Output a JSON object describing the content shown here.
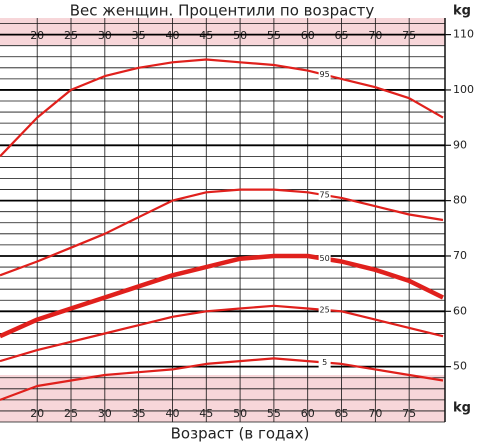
{
  "chart_data": {
    "type": "line",
    "title": "Вес женщин. Процентили по возрасту",
    "x_label": "Возраст (в годах)",
    "y_label": "kg",
    "x": [
      14.5,
      20,
      25,
      30,
      35,
      40,
      45,
      50,
      55,
      60,
      65,
      70,
      75,
      80
    ],
    "series": [
      {
        "name": "95",
        "color": "#e0201c",
        "values": [
          88,
          95,
          100,
          102.5,
          104,
          105,
          105.5,
          105,
          104.5,
          103.5,
          102,
          100.5,
          98.5,
          95
        ]
      },
      {
        "name": "75",
        "color": "#e0201c",
        "values": [
          66.5,
          69,
          71.5,
          74,
          77,
          80,
          81.5,
          82,
          82,
          81.5,
          80.5,
          79,
          77.5,
          76.5
        ]
      },
      {
        "name": "50",
        "color": "#e0201c",
        "values": [
          55.5,
          58.5,
          60.5,
          62.5,
          64.5,
          66.5,
          68,
          69.5,
          70,
          70,
          69,
          67.5,
          65.5,
          62.5
        ]
      },
      {
        "name": "25",
        "color": "#e0201c",
        "values": [
          51,
          53,
          54.5,
          56,
          57.5,
          59,
          60,
          60.5,
          61,
          60.5,
          60,
          58.5,
          57,
          55.5
        ]
      },
      {
        "name": "5",
        "color": "#e0201c",
        "values": [
          44,
          46.5,
          47.5,
          48.5,
          49,
          49.5,
          50.5,
          51,
          51.5,
          51,
          50.5,
          49.5,
          48.5,
          47.5
        ]
      }
    ],
    "xlim": [
      14.5,
      80.3
    ],
    "xticks": [
      20,
      25,
      30,
      35,
      40,
      45,
      50,
      55,
      60,
      65,
      70,
      75
    ],
    "ylim": [
      40,
      113
    ],
    "yticks": [
      50,
      60,
      70,
      80,
      90,
      100,
      110
    ],
    "y_axis_side": "right",
    "minor_ygrid_step": 2,
    "grid": true
  }
}
